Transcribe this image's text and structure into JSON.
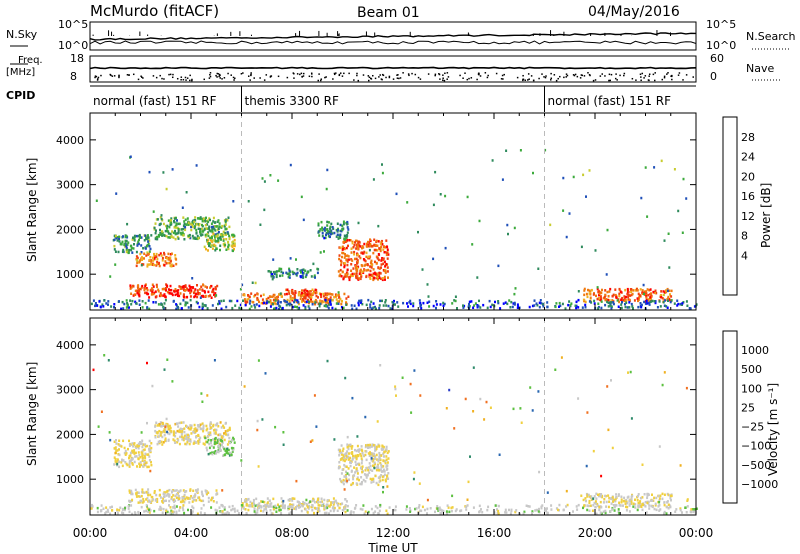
{
  "header": {
    "station": "McMurdo (fitACF)",
    "beam": "Beam 01",
    "date": "04/May/2016"
  },
  "top_panels": {
    "nsky_label": "N.Sky",
    "nsky_ticks": [
      "10^5",
      "10^0"
    ],
    "nsearch_label": "N.Search",
    "nsearch_ticks": [
      "10^5",
      "10^0"
    ],
    "freq_label": "Freq.",
    "freq_unit": "[MHz]",
    "freq_ticks": [
      "18",
      "8"
    ],
    "nave_label": "Nave",
    "nave_ticks": [
      "60",
      "0"
    ],
    "cpid_label": "CPID",
    "cpid_segments": [
      {
        "label": "normal (fast) 151 RF",
        "start": 0,
        "end": 6
      },
      {
        "label": "themis 3300 RF",
        "start": 6,
        "end": 18
      },
      {
        "label": "normal (fast) 151 RF",
        "start": 18,
        "end": 24
      }
    ]
  },
  "axes": {
    "ylabel": "Slant Range [km]",
    "y_ticks": [
      1000,
      2000,
      3000,
      4000
    ],
    "ylim": [
      200,
      4600
    ],
    "xlabel": "Time UT",
    "x_ticks": [
      "00:00",
      "04:00",
      "08:00",
      "12:00",
      "16:00",
      "20:00",
      "00:00"
    ],
    "x_tick_hours": [
      0,
      4,
      8,
      12,
      16,
      20,
      24
    ],
    "xlim": [
      0,
      24
    ],
    "mode_change_hours": [
      6,
      18
    ]
  },
  "colorbars": {
    "power": {
      "title": "Power [dB]",
      "labels": [
        "28",
        "24",
        "20",
        "16",
        "12",
        "8",
        "4"
      ],
      "colors": [
        "#0000ff",
        "#1f4fb8",
        "#2e8a5c",
        "#3caa3c",
        "#c8cc30",
        "#f0b020",
        "#f07a10",
        "#f04010",
        "#ff0000"
      ]
    },
    "velocity": {
      "title": "Velocity [m s⁻¹]",
      "labels": [
        "1000",
        "500",
        "100",
        "25",
        "−25",
        "−100",
        "−500",
        "−1000"
      ],
      "colors": [
        "#2a3cc8",
        "#2866b0",
        "#2e8a6a",
        "#5cc040",
        "#c8c8c8",
        "#f0d040",
        "#f0b020",
        "#f07020",
        "#ff0000"
      ]
    }
  },
  "chart_data": [
    {
      "type": "heatmap",
      "title": "Power [dB]",
      "xlabel": "Time UT",
      "ylabel": "Slant Range [km]",
      "x_unit": "hours UT",
      "xlim": [
        0,
        24
      ],
      "ylim": [
        200,
        4600
      ],
      "value_range": [
        0,
        30
      ],
      "regions": [
        {
          "x": [
            0.9,
            2.4
          ],
          "y": [
            1500,
            1900
          ],
          "value": 9
        },
        {
          "x": [
            1.8,
            3.4
          ],
          "y": [
            1200,
            1500
          ],
          "value": 22
        },
        {
          "x": [
            2.5,
            5.5
          ],
          "y": [
            1800,
            2300
          ],
          "value": 11
        },
        {
          "x": [
            4.5,
            5.7
          ],
          "y": [
            1550,
            1950
          ],
          "value": 14
        },
        {
          "x": [
            1.5,
            5.0
          ],
          "y": [
            500,
            800
          ],
          "value": 26
        },
        {
          "x": [
            6.0,
            10.2
          ],
          "y": [
            350,
            600
          ],
          "value": 22
        },
        {
          "x": [
            7.5,
            9.0
          ],
          "y": [
            500,
            700
          ],
          "value": 24
        },
        {
          "x": [
            7.0,
            9.0
          ],
          "y": [
            950,
            1150
          ],
          "value": 8
        },
        {
          "x": [
            9.8,
            11.8
          ],
          "y": [
            900,
            1800
          ],
          "value": 24
        },
        {
          "x": [
            9.0,
            10.2
          ],
          "y": [
            1800,
            2200
          ],
          "value": 8
        },
        {
          "x": [
            19.5,
            23.0
          ],
          "y": [
            400,
            700
          ],
          "value": 24
        },
        {
          "x": [
            0,
            24
          ],
          "y": [
            250,
            450
          ],
          "value": 6
        }
      ]
    },
    {
      "type": "heatmap",
      "title": "Velocity [m s⁻¹]",
      "xlabel": "Time UT",
      "ylabel": "Slant Range [km]",
      "x_unit": "hours UT",
      "xlim": [
        0,
        24
      ],
      "ylim": [
        200,
        4600
      ],
      "value_range": [
        -1000,
        1000
      ],
      "regions": [
        {
          "x": [
            0.9,
            2.4
          ],
          "y": [
            1300,
            1900
          ],
          "value": 150
        },
        {
          "x": [
            2.5,
            5.5
          ],
          "y": [
            1800,
            2300
          ],
          "value": 150
        },
        {
          "x": [
            4.5,
            5.7
          ],
          "y": [
            1550,
            1950
          ],
          "value": -150
        },
        {
          "x": [
            1.5,
            5.0
          ],
          "y": [
            500,
            800
          ],
          "value": 100
        },
        {
          "x": [
            6.0,
            10.2
          ],
          "y": [
            350,
            600
          ],
          "value": 80
        },
        {
          "x": [
            9.8,
            11.8
          ],
          "y": [
            900,
            1800
          ],
          "value": 100
        },
        {
          "x": [
            19.5,
            23.0
          ],
          "y": [
            400,
            700
          ],
          "value": 80
        },
        {
          "x": [
            0,
            24
          ],
          "y": [
            250,
            450
          ],
          "value": -60
        }
      ]
    }
  ]
}
